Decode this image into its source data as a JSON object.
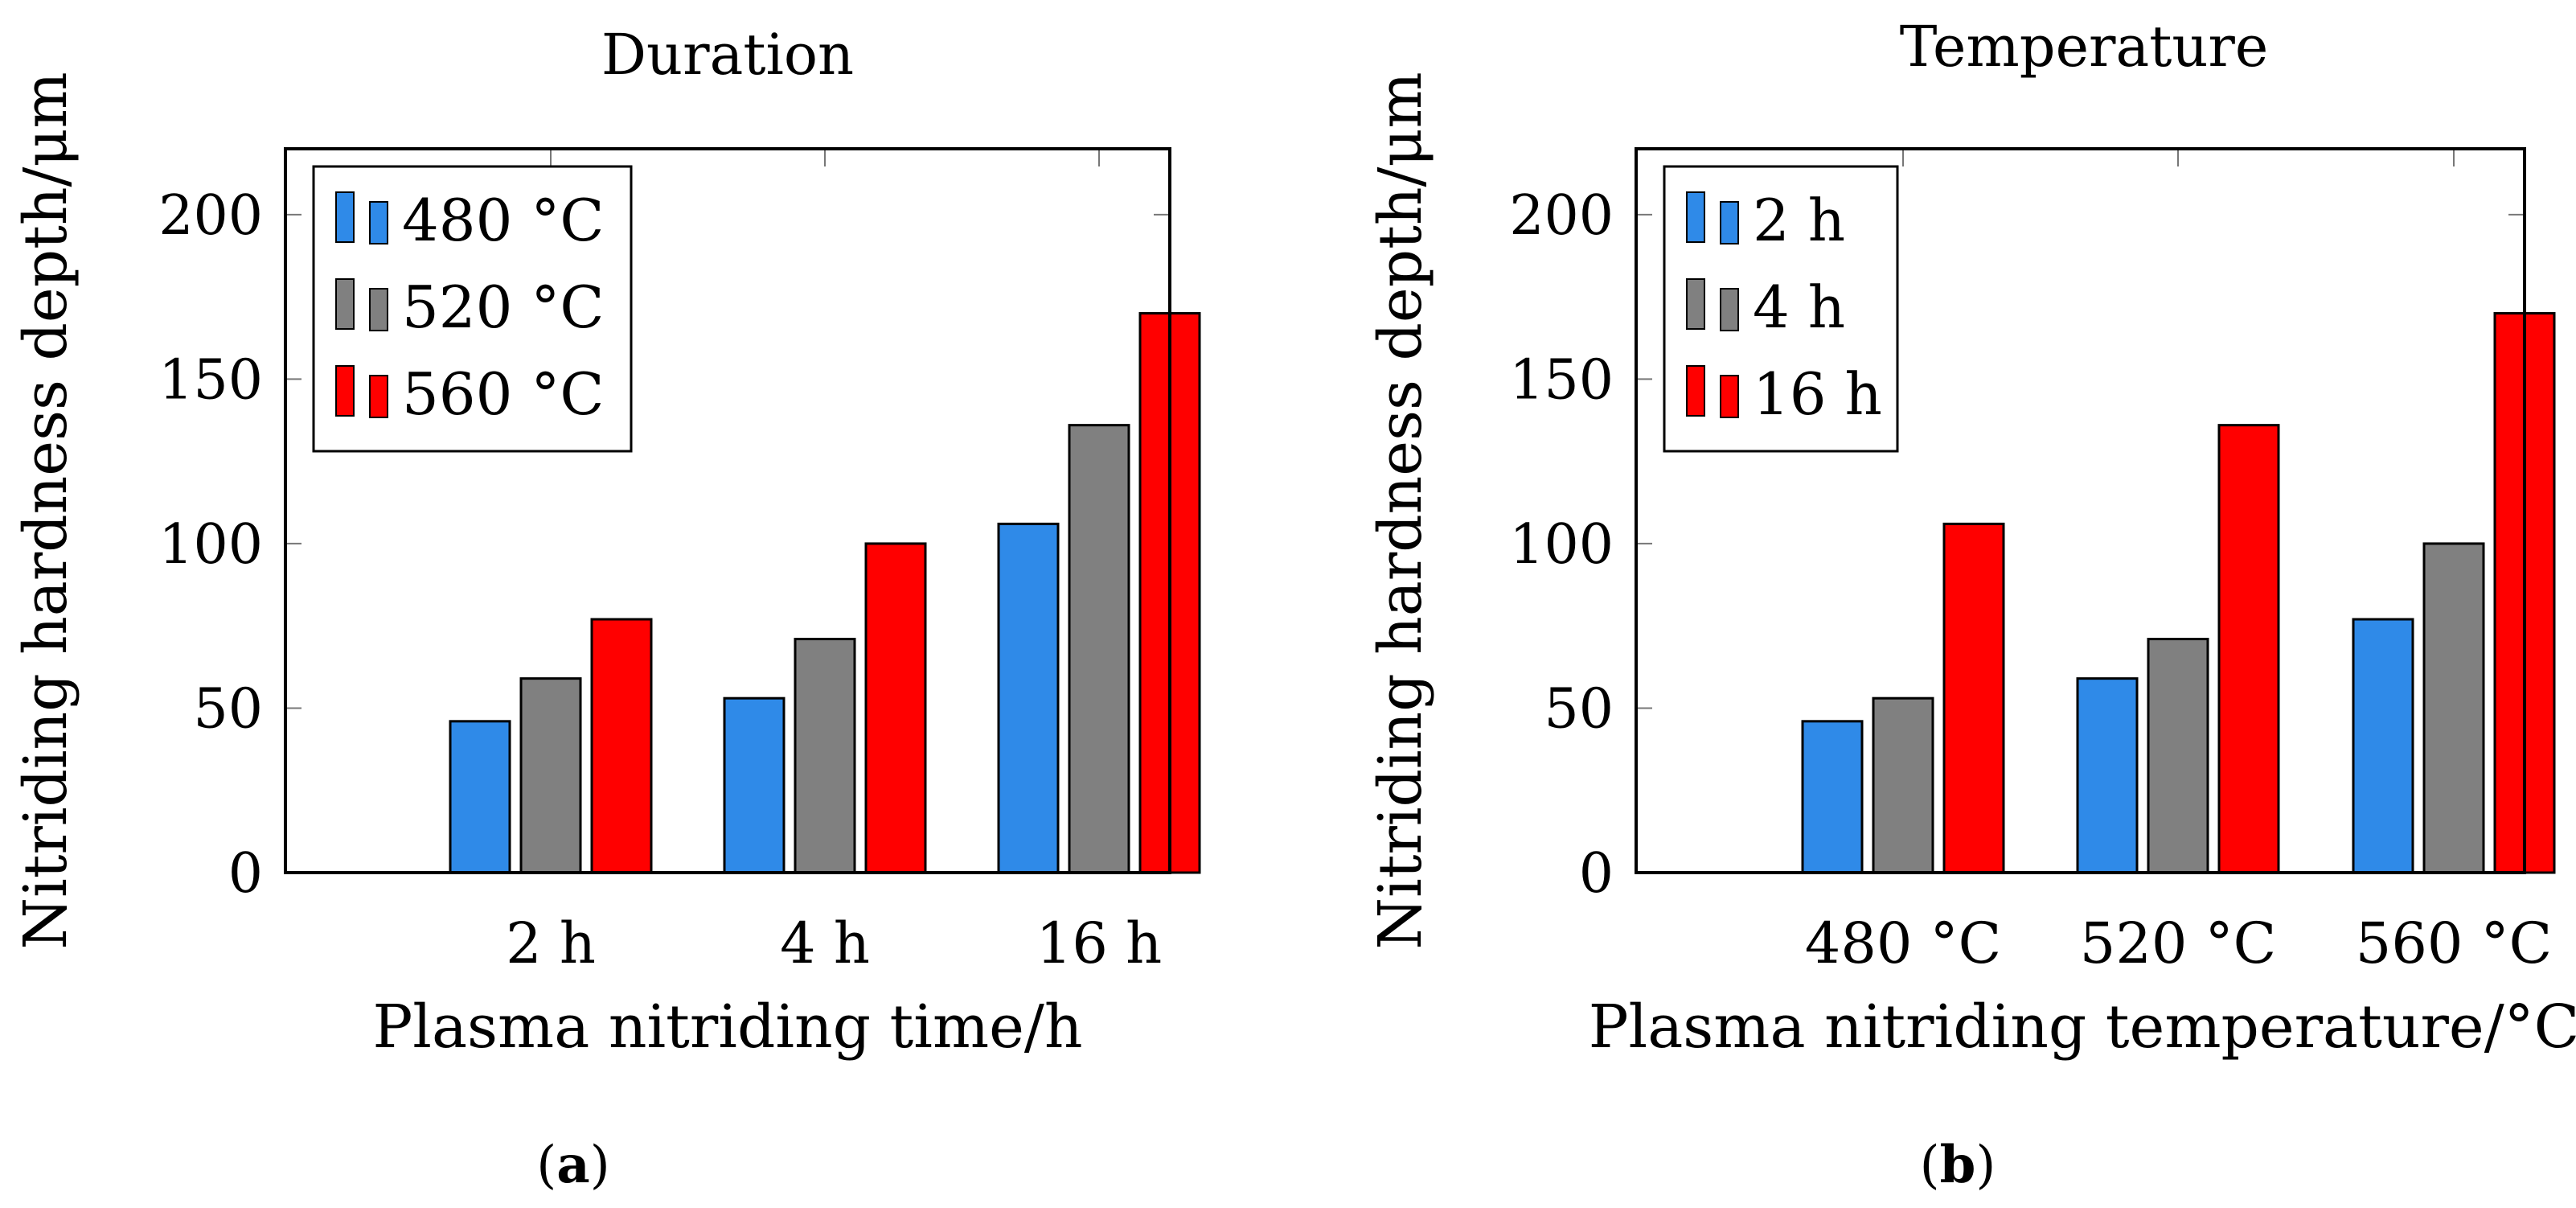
{
  "colors": {
    "blue": "#2f8ae8",
    "gray": "#808080",
    "red": "#ff0000",
    "stroke": "#000000",
    "tick": "#777777"
  },
  "chart_data": [
    {
      "type": "bar",
      "panel_label": "a",
      "title": "Duration",
      "xlabel": "Plasma nitriding time/h",
      "ylabel": "Nitriding hardness depth/μm",
      "categories": [
        "2 h",
        "4 h",
        "16 h"
      ],
      "ylim": [
        0,
        220
      ],
      "yticks": [
        0,
        50,
        100,
        150,
        200
      ],
      "legend_position": "top-left",
      "series": [
        {
          "name": "480 °C",
          "color": "#2f8ae8",
          "values": [
            46,
            53,
            106
          ]
        },
        {
          "name": "520 °C",
          "color": "#808080",
          "values": [
            59,
            71,
            136
          ]
        },
        {
          "name": "560 °C",
          "color": "#ff0000",
          "values": [
            77,
            100,
            170
          ]
        }
      ]
    },
    {
      "type": "bar",
      "panel_label": "b",
      "title": "Temperature",
      "xlabel": "Plasma nitriding temperature/°C",
      "ylabel": "Nitriding hardness depth/μm",
      "categories": [
        "480 °C",
        "520 °C",
        "560 °C"
      ],
      "ylim": [
        0,
        220
      ],
      "yticks": [
        0,
        50,
        100,
        150,
        200
      ],
      "legend_position": "top-left",
      "series": [
        {
          "name": "2 h",
          "color": "#2f8ae8",
          "values": [
            46,
            59,
            77
          ]
        },
        {
          "name": "4 h",
          "color": "#808080",
          "values": [
            53,
            71,
            100
          ]
        },
        {
          "name": "16 h",
          "color": "#ff0000",
          "values": [
            106,
            136,
            170
          ]
        }
      ]
    }
  ]
}
